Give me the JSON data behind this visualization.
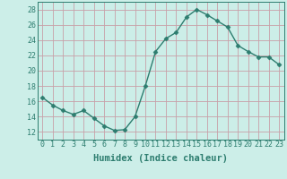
{
  "x": [
    0,
    1,
    2,
    3,
    4,
    5,
    6,
    7,
    8,
    9,
    10,
    11,
    12,
    13,
    14,
    15,
    16,
    17,
    18,
    19,
    20,
    21,
    22,
    23
  ],
  "y": [
    16.5,
    15.5,
    14.8,
    14.3,
    14.8,
    13.8,
    12.8,
    12.2,
    12.3,
    14.0,
    18.0,
    22.5,
    24.2,
    25.0,
    27.0,
    28.0,
    27.3,
    26.5,
    25.7,
    23.3,
    22.5,
    21.8,
    21.8,
    20.8
  ],
  "line_color": "#2d7d6f",
  "marker": "D",
  "marker_size": 2.5,
  "bg_color": "#cceee8",
  "grid_color": "#c8a0a8",
  "xlabel": "Humidex (Indice chaleur)",
  "xlabel_fontsize": 7.5,
  "xlim": [
    -0.5,
    23.5
  ],
  "ylim": [
    11,
    29
  ],
  "yticks": [
    12,
    14,
    16,
    18,
    20,
    22,
    24,
    26,
    28
  ],
  "xticks": [
    0,
    1,
    2,
    3,
    4,
    5,
    6,
    7,
    8,
    9,
    10,
    11,
    12,
    13,
    14,
    15,
    16,
    17,
    18,
    19,
    20,
    21,
    22,
    23
  ],
  "tick_fontsize": 6,
  "linewidth": 1.0,
  "tick_color": "#2d7d6f"
}
